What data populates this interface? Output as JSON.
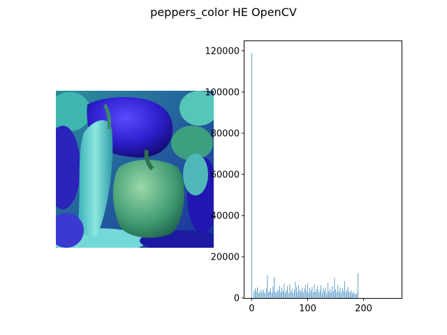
{
  "figure": {
    "title": "peppers_color HE OpenCV"
  },
  "image_panel": {
    "description_icon": "peppers-photo-icon"
  },
  "chart_data": {
    "type": "bar",
    "title": "",
    "xlabel": "",
    "ylabel": "",
    "xlim": [
      -13,
      268
    ],
    "ylim": [
      0,
      125000
    ],
    "xticks": [
      0,
      100,
      200
    ],
    "yticks": [
      0,
      20000,
      40000,
      60000,
      80000,
      100000,
      120000
    ],
    "bar_color": "#1f77b4",
    "series": [
      {
        "values": [
          119000,
          0,
          0,
          0,
          3200,
          0,
          4800,
          0,
          3500,
          0,
          5200,
          0,
          2400,
          0,
          2800,
          0,
          3900,
          0,
          2600,
          0,
          4200,
          0,
          3100,
          0,
          2200,
          0,
          4500,
          0,
          11000,
          0,
          2900,
          0,
          3300,
          0,
          4700,
          0,
          2500,
          0,
          5600,
          0,
          10200,
          0,
          3000,
          0,
          2700,
          0,
          4100,
          0,
          3600,
          0,
          6000,
          0,
          2800,
          0,
          5100,
          0,
          3400,
          0,
          7000,
          0,
          2600,
          0,
          3800,
          0,
          5800,
          0,
          2400,
          0,
          6600,
          0,
          3200,
          0,
          4400,
          0,
          2300,
          0,
          3700,
          0,
          7900,
          0,
          5300,
          0,
          2900,
          0,
          6200,
          0,
          4000,
          0,
          3100,
          0,
          5000,
          0,
          2700,
          0,
          4600,
          0,
          6400,
          0,
          3300,
          0,
          7200,
          0,
          2500,
          0,
          4900,
          0,
          3600,
          0,
          5500,
          0,
          2800,
          0,
          6800,
          0,
          3000,
          0,
          4300,
          0,
          5900,
          0,
          2600,
          0,
          3900,
          0,
          6100,
          0,
          2400,
          0,
          4800,
          0,
          3500,
          0,
          5200,
          0,
          2200,
          0,
          7400,
          0,
          3100,
          0,
          4500,
          0,
          2700,
          0,
          5700,
          0,
          3400,
          0,
          9800,
          0,
          4200,
          0,
          2900,
          0,
          6300,
          0,
          3300,
          0,
          5100,
          0,
          2500,
          0,
          4700,
          0,
          3600,
          0,
          8200,
          0,
          2800,
          0,
          4000,
          0,
          5400,
          0,
          3200,
          0,
          2600,
          0,
          3800,
          0,
          2300,
          0,
          3000,
          0,
          2100,
          0,
          1800,
          0,
          2500,
          0,
          12000
        ]
      }
    ]
  }
}
